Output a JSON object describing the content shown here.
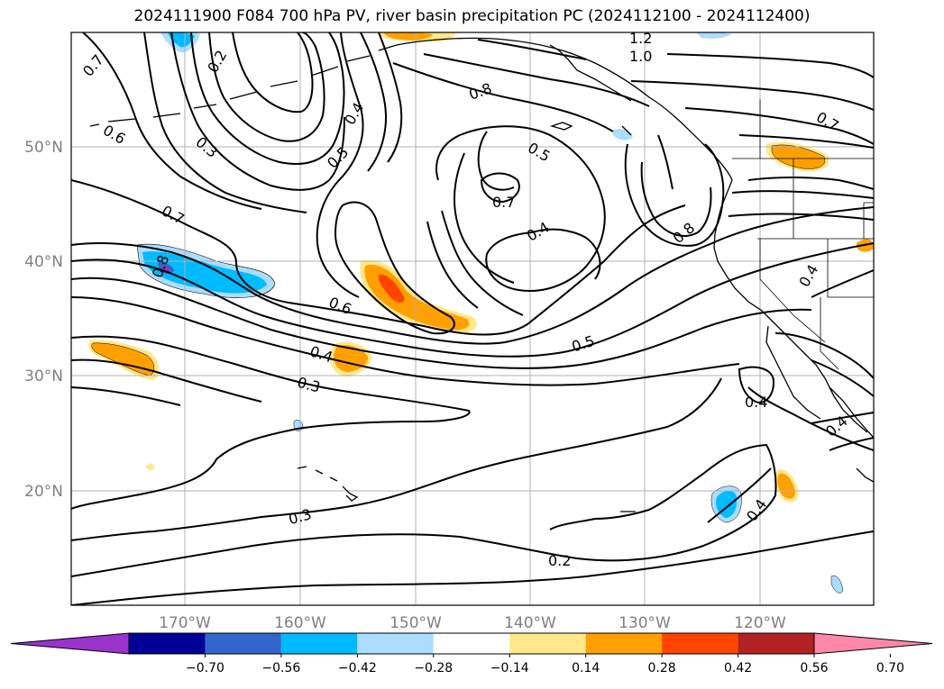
{
  "title": "2024111900 F084 700 hPa PV, river basin precipitation PC (2024112100 - 2024112400)",
  "latitude_labels": [
    "50°N",
    "40°N",
    "30°N",
    "20°N"
  ],
  "longitude_labels": [
    "170°W",
    "160°W",
    "150°W",
    "140°W",
    "130°W",
    "120°W"
  ],
  "contour_labels": [
    "0.7",
    "0.6",
    "0.2",
    "0.3",
    "0.4",
    "0.5",
    "0.7",
    "0.8",
    "0.6",
    "0.4",
    "0.3",
    "1.2",
    "1.0",
    "0.8",
    "0.5",
    "0.7",
    "0.4",
    "0.5",
    "0.8",
    "0.7",
    "0.4",
    "0.4",
    "0.4",
    "0.3",
    "0.4",
    "0.2"
  ],
  "colorbar": {
    "ticks": [
      "−0.70",
      "−0.56",
      "−0.42",
      "−0.28",
      "−0.14",
      "0.14",
      "0.28",
      "0.42",
      "0.56",
      "0.70"
    ],
    "colors": [
      "#9933cc",
      "#000099",
      "#3366cc",
      "#00bbff",
      "#aaddff",
      "#ffffff",
      "#ffe88a",
      "#ffa000",
      "#ff4400",
      "#b22222",
      "#ff88aa"
    ]
  },
  "shading_colors": {
    "light_blue": "#aaddff",
    "blue": "#00bbff",
    "mid_blue": "#3366cc",
    "purple": "#9933cc",
    "yellow": "#ffe88a",
    "orange": "#ffa000",
    "red_orange": "#ff4400"
  }
}
